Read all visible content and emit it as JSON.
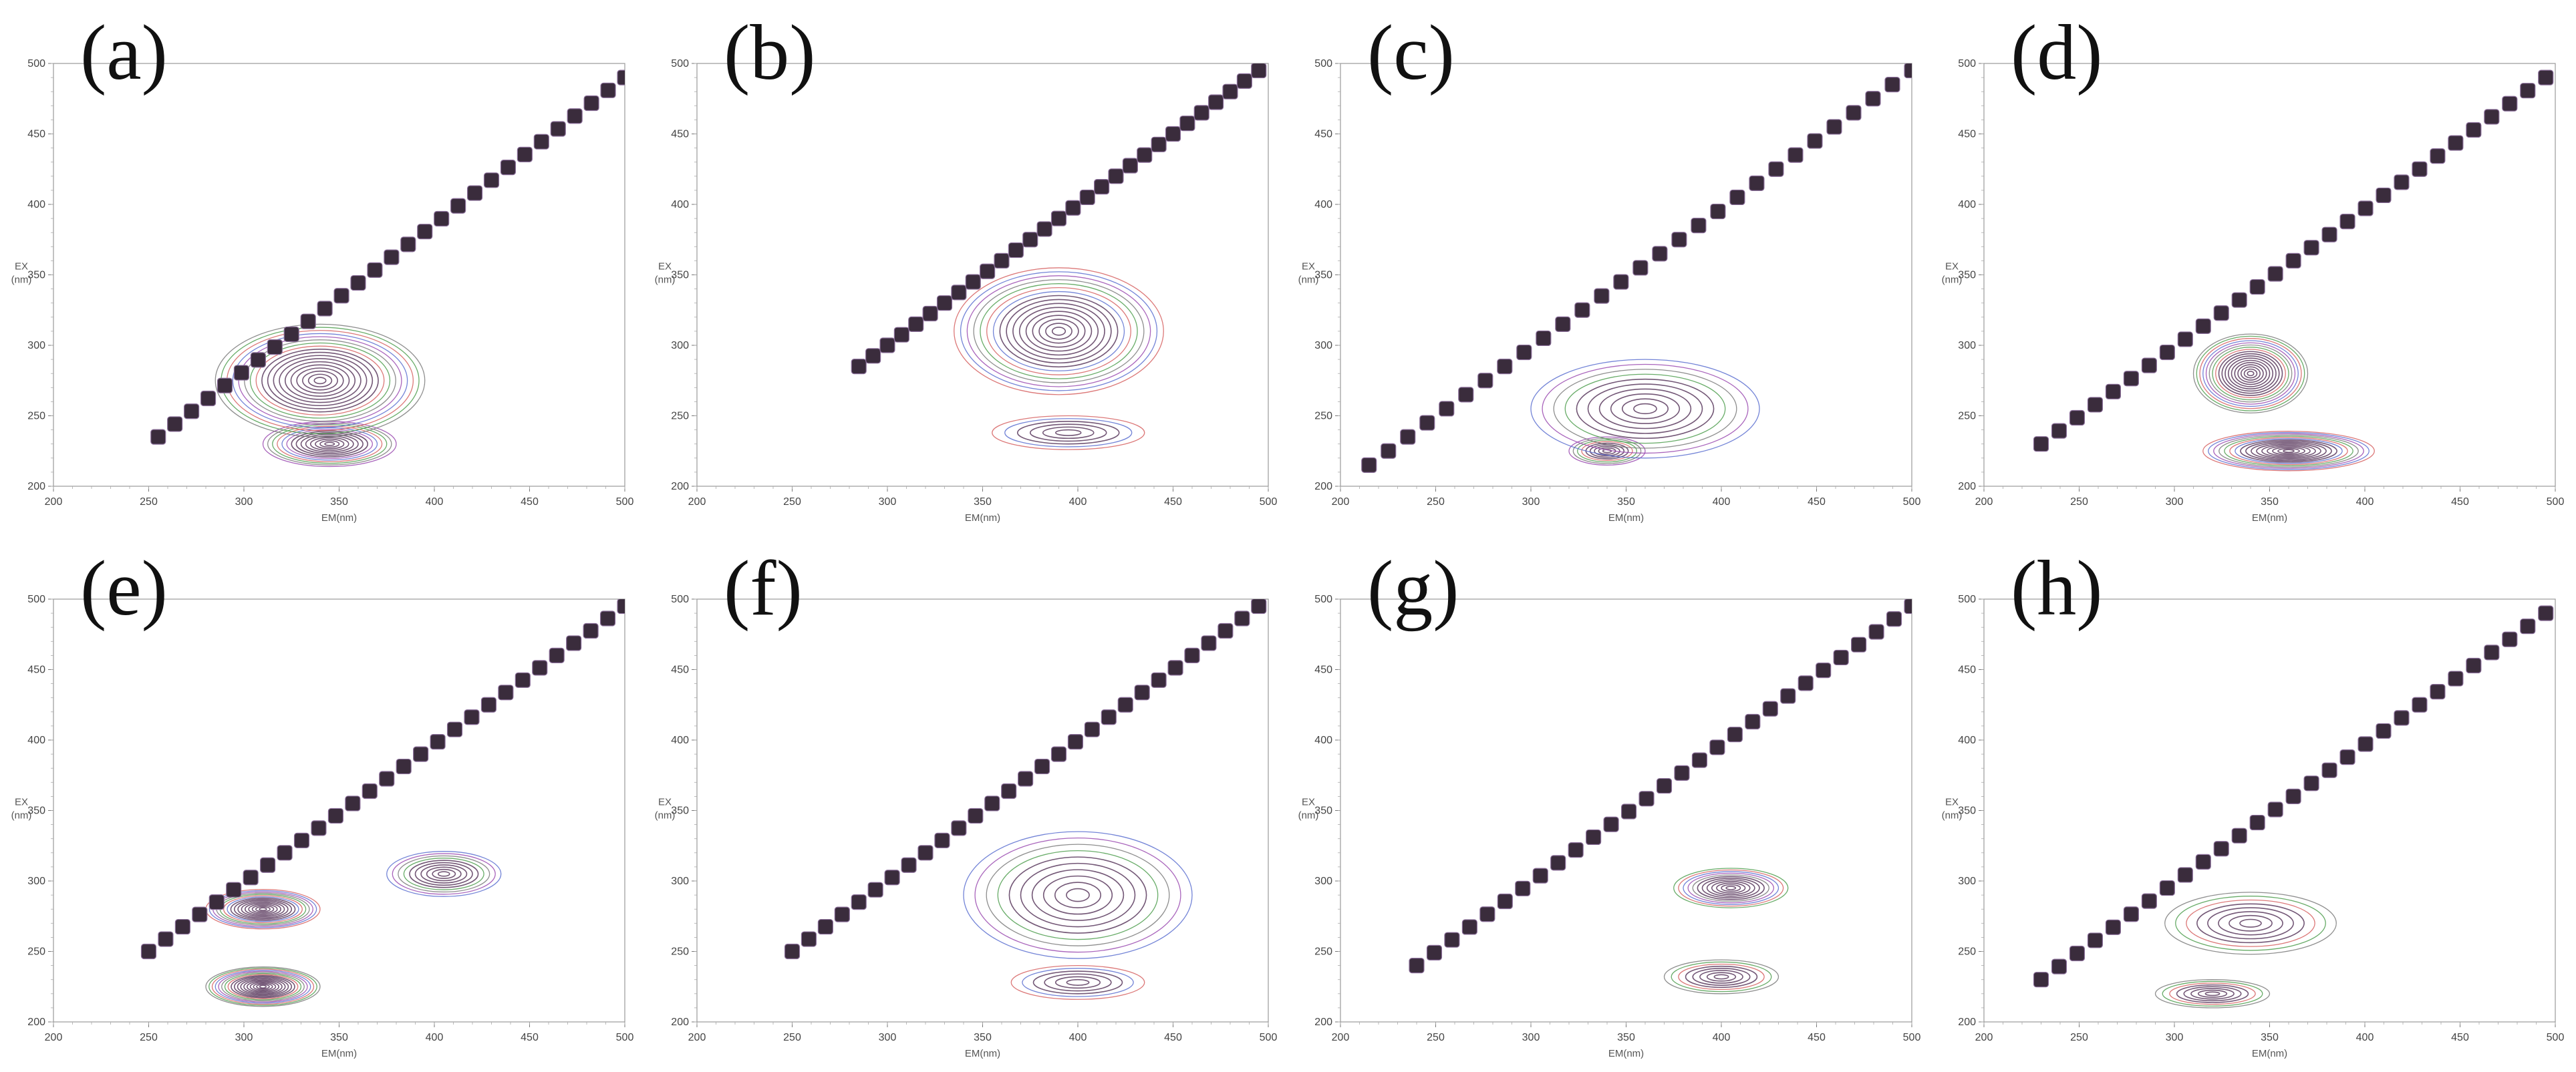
{
  "figure": {
    "background": "#ffffff"
  },
  "chart_data": [
    {
      "type": "contour",
      "panel_label": "(a)",
      "xlabel": "EM(nm)",
      "ylabel": "EX (nm)",
      "xticks": [
        200,
        250,
        300,
        350,
        400,
        450,
        500
      ],
      "yticks": [
        200,
        250,
        300,
        350,
        400,
        450,
        500
      ],
      "xlim": [
        200,
        500
      ],
      "ylim": [
        200,
        500
      ],
      "scatter_line": {
        "x": [
          255,
          500
        ],
        "y": [
          235,
          490
        ]
      },
      "peaks": [
        {
          "em": 345,
          "ex": 230,
          "sx": 35,
          "sy": 16,
          "n": 14
        },
        {
          "em": 340,
          "ex": 275,
          "sx": 55,
          "sy": 40,
          "n": 18
        }
      ]
    },
    {
      "type": "contour",
      "panel_label": "(b)",
      "xlabel": "EM(nm)",
      "ylabel": "EX (nm)",
      "xticks": [
        200,
        250,
        300,
        350,
        400,
        450,
        500
      ],
      "yticks": [
        200,
        250,
        300,
        350,
        400,
        450,
        500
      ],
      "xlim": [
        200,
        500
      ],
      "ylim": [
        200,
        500
      ],
      "scatter_line": {
        "x": [
          285,
          495
        ],
        "y": [
          285,
          495
        ]
      },
      "peaks": [
        {
          "em": 390,
          "ex": 310,
          "sx": 55,
          "sy": 45,
          "n": 16
        },
        {
          "em": 395,
          "ex": 238,
          "sx": 40,
          "sy": 12,
          "n": 6
        }
      ]
    },
    {
      "type": "contour",
      "panel_label": "(c)",
      "xlabel": "EM(nm)",
      "ylabel": "EX (nm)",
      "xticks": [
        200,
        250,
        300,
        350,
        400,
        450,
        500
      ],
      "yticks": [
        200,
        250,
        300,
        350,
        400,
        450,
        500
      ],
      "xlim": [
        200,
        500
      ],
      "ylim": [
        200,
        500
      ],
      "scatter_line": {
        "x": [
          215,
          500
        ],
        "y": [
          215,
          495
        ]
      },
      "peaks": [
        {
          "em": 340,
          "ex": 225,
          "sx": 20,
          "sy": 10,
          "n": 9
        },
        {
          "em": 360,
          "ex": 255,
          "sx": 60,
          "sy": 35,
          "n": 10
        }
      ]
    },
    {
      "type": "contour",
      "panel_label": "(d)",
      "xlabel": "EM(nm)",
      "ylabel": "EX (nm)",
      "xticks": [
        200,
        250,
        300,
        350,
        400,
        450,
        500
      ],
      "yticks": [
        200,
        250,
        300,
        350,
        400,
        450,
        500
      ],
      "xlim": [
        200,
        500
      ],
      "ylim": [
        200,
        500
      ],
      "scatter_line": {
        "x": [
          230,
          495
        ],
        "y": [
          230,
          490
        ]
      },
      "peaks": [
        {
          "em": 340,
          "ex": 280,
          "sx": 30,
          "sy": 28,
          "n": 18
        },
        {
          "em": 360,
          "ex": 225,
          "sx": 45,
          "sy": 14,
          "n": 16
        }
      ]
    },
    {
      "type": "contour",
      "panel_label": "(e)",
      "xlabel": "EM(nm)",
      "ylabel": "EX (nm)",
      "xticks": [
        200,
        250,
        300,
        350,
        400,
        450,
        500
      ],
      "yticks": [
        200,
        250,
        300,
        350,
        400,
        450,
        500
      ],
      "xlim": [
        200,
        500
      ],
      "ylim": [
        200,
        500
      ],
      "scatter_line": {
        "x": [
          250,
          500
        ],
        "y": [
          250,
          495
        ]
      },
      "peaks": [
        {
          "em": 310,
          "ex": 225,
          "sx": 30,
          "sy": 14,
          "n": 18
        },
        {
          "em": 310,
          "ex": 280,
          "sx": 30,
          "sy": 14,
          "n": 16
        },
        {
          "em": 405,
          "ex": 305,
          "sx": 30,
          "sy": 16,
          "n": 10
        }
      ]
    },
    {
      "type": "contour",
      "panel_label": "(f)",
      "xlabel": "EM(nm)",
      "ylabel": "EX (nm)",
      "xticks": [
        200,
        250,
        300,
        350,
        400,
        450,
        500
      ],
      "yticks": [
        200,
        250,
        300,
        350,
        400,
        450,
        500
      ],
      "xlim": [
        200,
        500
      ],
      "ylim": [
        200,
        500
      ],
      "scatter_line": {
        "x": [
          250,
          495
        ],
        "y": [
          250,
          495
        ]
      },
      "peaks": [
        {
          "em": 400,
          "ex": 290,
          "sx": 60,
          "sy": 45,
          "n": 10
        },
        {
          "em": 400,
          "ex": 228,
          "sx": 35,
          "sy": 12,
          "n": 6
        }
      ]
    },
    {
      "type": "contour",
      "panel_label": "(g)",
      "xlabel": "EM(nm)",
      "ylabel": "EX (nm)",
      "xticks": [
        200,
        250,
        300,
        350,
        400,
        450,
        500
      ],
      "yticks": [
        200,
        250,
        300,
        350,
        400,
        450,
        500
      ],
      "xlim": [
        200,
        500
      ],
      "ylim": [
        200,
        500
      ],
      "scatter_line": {
        "x": [
          240,
          500
        ],
        "y": [
          240,
          495
        ]
      },
      "peaks": [
        {
          "em": 405,
          "ex": 295,
          "sx": 30,
          "sy": 14,
          "n": 12
        },
        {
          "em": 400,
          "ex": 232,
          "sx": 30,
          "sy": 12,
          "n": 8
        }
      ]
    },
    {
      "type": "contour",
      "panel_label": "(h)",
      "xlabel": "EM(nm)",
      "ylabel": "EX (nm)",
      "xticks": [
        200,
        250,
        300,
        350,
        400,
        450,
        500
      ],
      "yticks": [
        200,
        250,
        300,
        350,
        400,
        450,
        500
      ],
      "xlim": [
        200,
        500
      ],
      "ylim": [
        200,
        500
      ],
      "scatter_line": {
        "x": [
          230,
          495
        ],
        "y": [
          230,
          490
        ]
      },
      "peaks": [
        {
          "em": 320,
          "ex": 220,
          "sx": 30,
          "sy": 10,
          "n": 8
        },
        {
          "em": 340,
          "ex": 270,
          "sx": 45,
          "sy": 22,
          "n": 8
        }
      ]
    }
  ],
  "contour_colors": [
    "#5a6fd0",
    "#d66060",
    "#4e9e4e",
    "#7a7a7a",
    "#9a4ab0"
  ],
  "scatter_color": "#3a2c3c"
}
